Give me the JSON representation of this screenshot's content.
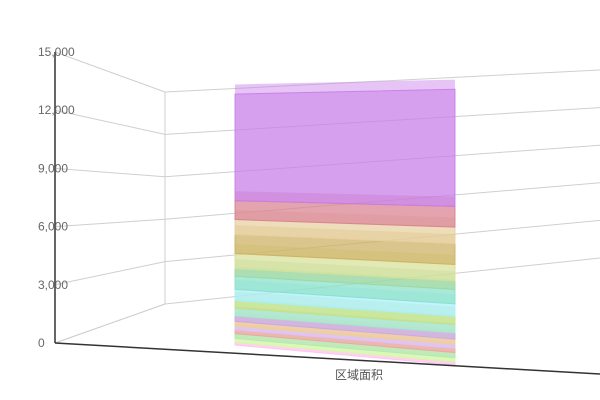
{
  "chart_data": {
    "type": "bar",
    "variant": "3d-stacked-translucent",
    "categories": [
      "区域面积"
    ],
    "ylim": [
      0,
      15000
    ],
    "yticks": [
      "0",
      "3,000",
      "6,000",
      "9,000",
      "12,000",
      "15,000"
    ],
    "grid": true,
    "legend": "none",
    "series": [
      {
        "value": 150,
        "color": "#ffc0f0"
      },
      {
        "value": 200,
        "color": "#d0ffa0"
      },
      {
        "value": 250,
        "color": "#b0e8b0"
      },
      {
        "value": 200,
        "color": "#f3a3a3"
      },
      {
        "value": 200,
        "color": "#e0c0ff"
      },
      {
        "value": 250,
        "color": "#f0d090"
      },
      {
        "value": 300,
        "color": "#c8a8e8"
      },
      {
        "value": 400,
        "color": "#a0f0c8"
      },
      {
        "value": 400,
        "color": "#c8e080"
      },
      {
        "value": 600,
        "color": "#a8f0ff"
      },
      {
        "value": 700,
        "color": "#88e0c8"
      },
      {
        "value": 400,
        "color": "#a0d8a0"
      },
      {
        "value": 800,
        "color": "#d8e098"
      },
      {
        "value": 1000,
        "color": "#ccb060"
      },
      {
        "value": 800,
        "color": "#e8d0a0"
      },
      {
        "value": 1000,
        "color": "#d88090"
      },
      {
        "value": 5650,
        "color": "#c87ce8"
      }
    ]
  }
}
